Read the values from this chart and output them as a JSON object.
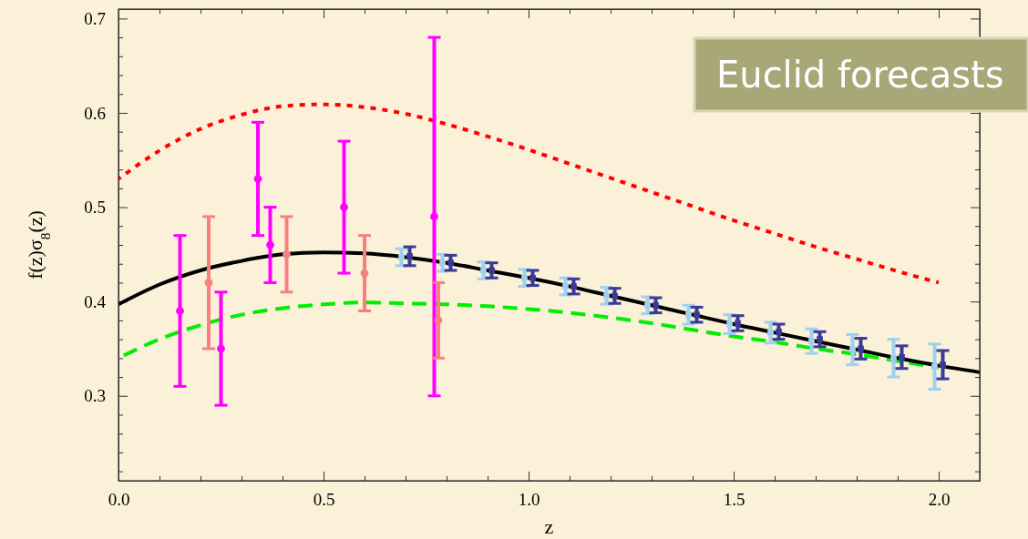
{
  "chart_data": {
    "type": "scatter",
    "xlabel": "z",
    "ylabel": "f(z)σ$_{8}$(z)",
    "xlim": [
      0,
      2.1
    ],
    "ylim": [
      0.21,
      0.71
    ],
    "xticks": [
      {
        "value": 0,
        "label": "0.0"
      },
      {
        "value": 0.1,
        "label": null
      },
      {
        "value": 0.2,
        "label": null
      },
      {
        "value": 0.3,
        "label": null
      },
      {
        "value": 0.4,
        "label": null
      },
      0.5,
      {
        "value": 0.6,
        "label": null
      },
      {
        "value": 0.7,
        "label": null
      },
      {
        "value": 0.8,
        "label": null
      },
      {
        "value": 0.9,
        "label": null
      },
      {
        "value": 1,
        "label": "1.0"
      },
      {
        "value": 1.1,
        "label": null
      },
      {
        "value": 1.2,
        "label": null
      },
      {
        "value": 1.3,
        "label": null
      },
      {
        "value": 1.4,
        "label": null
      },
      1.5,
      {
        "value": 1.6,
        "label": null
      },
      {
        "value": 1.7,
        "label": null
      },
      {
        "value": 1.8,
        "label": null
      },
      {
        "value": 1.9,
        "label": null
      },
      {
        "value": 2,
        "label": "2.0"
      }
    ],
    "yticks": [
      {
        "value": 0.22,
        "label": null
      },
      {
        "value": 0.24,
        "label": null
      },
      {
        "value": 0.26,
        "label": null
      },
      {
        "value": 0.28,
        "label": null
      },
      0.3,
      {
        "value": 0.32,
        "label": null
      },
      {
        "value": 0.34,
        "label": null
      },
      {
        "value": 0.36,
        "label": null
      },
      {
        "value": 0.38,
        "label": null
      },
      0.4,
      {
        "value": 0.42,
        "label": null
      },
      {
        "value": 0.44,
        "label": null
      },
      {
        "value": 0.46,
        "label": null
      },
      {
        "value": 0.48,
        "label": null
      },
      0.5,
      {
        "value": 0.52,
        "label": null
      },
      {
        "value": 0.54,
        "label": null
      },
      {
        "value": 0.56,
        "label": null
      },
      {
        "value": 0.58,
        "label": null
      },
      0.6,
      {
        "value": 0.62,
        "label": null
      },
      {
        "value": 0.64,
        "label": null
      },
      {
        "value": 0.66,
        "label": null
      },
      {
        "value": 0.68,
        "label": null
      },
      0.7
    ],
    "grid": false,
    "annotations": [
      "Euclid forecasts"
    ],
    "series": [
      {
        "type": "line",
        "color": "#ff0000",
        "line_style": "dotted",
        "x": [
          0,
          0.1,
          0.2,
          0.3,
          0.4,
          0.5,
          0.6,
          0.7,
          0.8,
          0.9,
          1.0,
          1.1,
          1.2,
          1.3,
          1.4,
          1.5,
          1.6,
          1.7,
          1.8,
          1.9,
          2.0
        ],
        "values": [
          0.53,
          0.56,
          0.583,
          0.598,
          0.607,
          0.609,
          0.606,
          0.599,
          0.588,
          0.575,
          0.561,
          0.546,
          0.531,
          0.516,
          0.501,
          0.486,
          0.472,
          0.458,
          0.445,
          0.432,
          0.42
        ]
      },
      {
        "type": "line",
        "color": "#00ee00",
        "line_style": "dashed",
        "x": [
          0,
          0.1,
          0.2,
          0.3,
          0.4,
          0.5,
          0.6,
          0.7,
          0.8,
          0.9,
          1.0,
          1.1,
          1.2,
          1.3,
          1.4,
          1.5,
          1.6,
          1.7,
          1.8,
          1.9,
          2.0
        ],
        "values": [
          0.34,
          0.36,
          0.375,
          0.386,
          0.393,
          0.397,
          0.399,
          0.398,
          0.397,
          0.395,
          0.392,
          0.388,
          0.383,
          0.377,
          0.37,
          0.363,
          0.357,
          0.35,
          0.344,
          0.337,
          0.33
        ]
      },
      {
        "type": "line",
        "color": "#000000",
        "line_style": "solid",
        "x": [
          0,
          0.1,
          0.2,
          0.3,
          0.4,
          0.5,
          0.6,
          0.7,
          0.8,
          0.9,
          1.0,
          1.1,
          1.2,
          1.3,
          1.4,
          1.5,
          1.6,
          1.7,
          1.8,
          1.9,
          2.0,
          2.1
        ],
        "values": [
          0.397,
          0.418,
          0.433,
          0.443,
          0.45,
          0.452,
          0.451,
          0.447,
          0.441,
          0.433,
          0.425,
          0.416,
          0.406,
          0.396,
          0.386,
          0.376,
          0.367,
          0.358,
          0.349,
          0.34,
          0.332,
          0.325
        ]
      },
      {
        "color": "#ff00ff",
        "marker": "circle",
        "x": [
          0.15,
          0.25,
          0.34,
          0.37,
          0.55,
          0.77
        ],
        "values": [
          0.39,
          0.35,
          0.53,
          0.46,
          0.5,
          0.49
        ],
        "errors": [
          [
            0.31,
            0.47
          ],
          [
            0.29,
            0.41
          ],
          [
            0.47,
            0.59
          ],
          [
            0.42,
            0.5
          ],
          [
            0.43,
            0.57
          ],
          [
            0.3,
            0.68
          ]
        ]
      },
      {
        "color": "#f88080",
        "marker": "circle",
        "x": [
          0.22,
          0.41,
          0.6,
          0.78
        ],
        "values": [
          0.42,
          0.45,
          0.43,
          0.38
        ],
        "errors": [
          [
            0.35,
            0.49
          ],
          [
            0.41,
            0.49
          ],
          [
            0.39,
            0.47
          ],
          [
            0.34,
            0.42
          ]
        ]
      },
      {
        "color": "#a0d0f0",
        "marker": "square",
        "x": [
          0.69,
          0.79,
          0.89,
          0.99,
          1.09,
          1.19,
          1.29,
          1.39,
          1.49,
          1.59,
          1.69,
          1.79,
          1.89,
          1.99
        ],
        "values": [
          0.447,
          0.441,
          0.433,
          0.425,
          0.416,
          0.406,
          0.396,
          0.386,
          0.376,
          0.367,
          0.358,
          0.349,
          0.34,
          0.331
        ],
        "errors": [
          0.009,
          0.009,
          0.009,
          0.009,
          0.009,
          0.009,
          0.009,
          0.01,
          0.01,
          0.011,
          0.013,
          0.016,
          0.02,
          0.024
        ]
      },
      {
        "color": "#3a3a98",
        "marker": "square",
        "x": [
          0.71,
          0.81,
          0.91,
          1.01,
          1.11,
          1.21,
          1.31,
          1.41,
          1.51,
          1.61,
          1.71,
          1.81,
          1.91,
          2.01
        ],
        "values": [
          0.448,
          0.441,
          0.433,
          0.425,
          0.416,
          0.406,
          0.396,
          0.386,
          0.377,
          0.368,
          0.36,
          0.35,
          0.341,
          0.333
        ],
        "errors": [
          0.01,
          0.008,
          0.008,
          0.008,
          0.008,
          0.008,
          0.008,
          0.008,
          0.008,
          0.008,
          0.008,
          0.011,
          0.012,
          0.015
        ]
      }
    ]
  }
}
